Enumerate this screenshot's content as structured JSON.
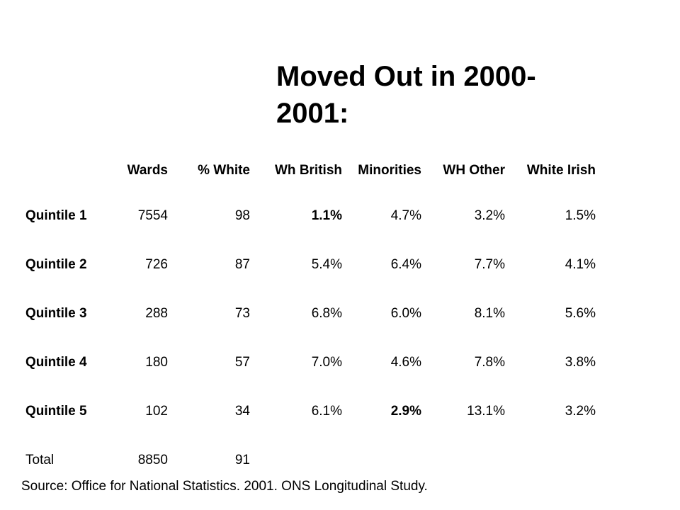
{
  "title": "Moved Out in 2000-2001:",
  "table": {
    "headers": [
      "Wards",
      "% White",
      "Wh British",
      "Minorities",
      "WH Other",
      "White Irish"
    ],
    "rows": [
      {
        "label": "Quintile 1",
        "label_bold": true,
        "cells": [
          "7554",
          "98",
          "1.1%",
          "4.7%",
          "3.2%",
          "1.5%"
        ],
        "bold_cells": [
          2
        ]
      },
      {
        "label": "Quintile 2",
        "label_bold": true,
        "cells": [
          "726",
          "87",
          "5.4%",
          "6.4%",
          "7.7%",
          "4.1%"
        ],
        "bold_cells": []
      },
      {
        "label": "Quintile 3",
        "label_bold": true,
        "cells": [
          "288",
          "73",
          "6.8%",
          "6.0%",
          "8.1%",
          "5.6%"
        ],
        "bold_cells": []
      },
      {
        "label": "Quintile 4",
        "label_bold": true,
        "cells": [
          "180",
          "57",
          "7.0%",
          "4.6%",
          "7.8%",
          "3.8%"
        ],
        "bold_cells": []
      },
      {
        "label": "Quintile 5",
        "label_bold": true,
        "cells": [
          "102",
          "34",
          "6.1%",
          "2.9%",
          "13.1%",
          "3.2%"
        ],
        "bold_cells": [
          3
        ]
      },
      {
        "label": "Total",
        "label_bold": false,
        "cells": [
          "8850",
          "91",
          "",
          "",
          "",
          ""
        ],
        "bold_cells": []
      }
    ]
  },
  "source": "Source: Office for National Statistics. 2001. ONS Longitudinal Study."
}
